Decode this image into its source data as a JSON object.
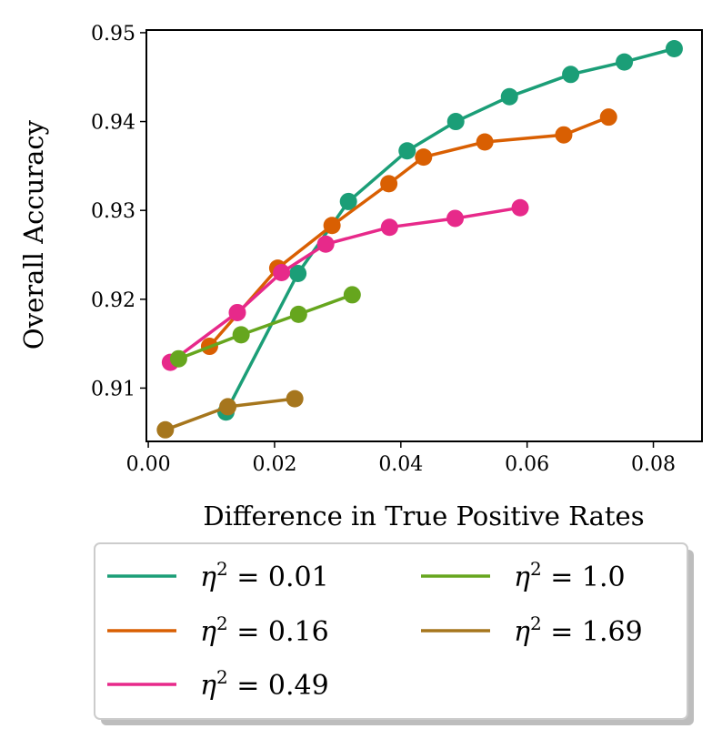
{
  "chart_data": {
    "type": "line",
    "title": "",
    "xlabel": "Difference in True Positive Rates",
    "ylabel": "Overall Accuracy",
    "xlim": [
      -0.0003,
      0.0877
    ],
    "ylim": [
      0.904,
      0.9503
    ],
    "xticks": [
      0.0,
      0.02,
      0.04,
      0.06,
      0.08
    ],
    "xtick_labels": [
      "0.00",
      "0.02",
      "0.04",
      "0.06",
      "0.08"
    ],
    "yticks": [
      0.91,
      0.92,
      0.93,
      0.94,
      0.95
    ],
    "ytick_labels": [
      "0.91",
      "0.92",
      "0.93",
      "0.94",
      "0.95"
    ],
    "grid": false,
    "legend_position": "below",
    "legend_columns": 2,
    "series": [
      {
        "name": "η² = 0.01",
        "name_prefix": "η",
        "name_sup": "2",
        "name_value": " = 0.01",
        "color": "#1b9e77",
        "x": [
          0.0123,
          0.0237,
          0.0317,
          0.041,
          0.0487,
          0.0572,
          0.0669,
          0.0754,
          0.0833
        ],
        "y": [
          0.9073,
          0.9229,
          0.931,
          0.9367,
          0.94,
          0.9428,
          0.9453,
          0.9467,
          0.9482
        ]
      },
      {
        "name": "η² = 0.16",
        "name_prefix": "η",
        "name_sup": "2",
        "name_value": " = 0.16",
        "color": "#d95f02",
        "x": [
          0.0097,
          0.0205,
          0.0291,
          0.0381,
          0.0436,
          0.0533,
          0.0658,
          0.0729
        ],
        "y": [
          0.9147,
          0.9235,
          0.9283,
          0.933,
          0.936,
          0.9377,
          0.9385,
          0.9405
        ]
      },
      {
        "name": "η² = 0.49",
        "name_prefix": "η",
        "name_sup": "2",
        "name_value": " = 0.49",
        "color": "#e7298a",
        "x": [
          0.0035,
          0.0141,
          0.0211,
          0.0281,
          0.0382,
          0.0486,
          0.0589
        ],
        "y": [
          0.9129,
          0.9185,
          0.923,
          0.9262,
          0.9281,
          0.9291,
          0.9303
        ]
      },
      {
        "name": "η² = 1.0",
        "name_prefix": "η",
        "name_sup": "2",
        "name_value": " = 1.0",
        "color": "#66a61e",
        "x": [
          0.0048,
          0.0147,
          0.0238,
          0.0323
        ],
        "y": [
          0.9133,
          0.916,
          0.9183,
          0.9205
        ]
      },
      {
        "name": "η² = 1.69",
        "name_prefix": "η",
        "name_sup": "2",
        "name_value": " = 1.69",
        "color": "#a6761d",
        "x": [
          0.0027,
          0.0126,
          0.0232
        ],
        "y": [
          0.9053,
          0.9079,
          0.9088
        ]
      }
    ]
  }
}
